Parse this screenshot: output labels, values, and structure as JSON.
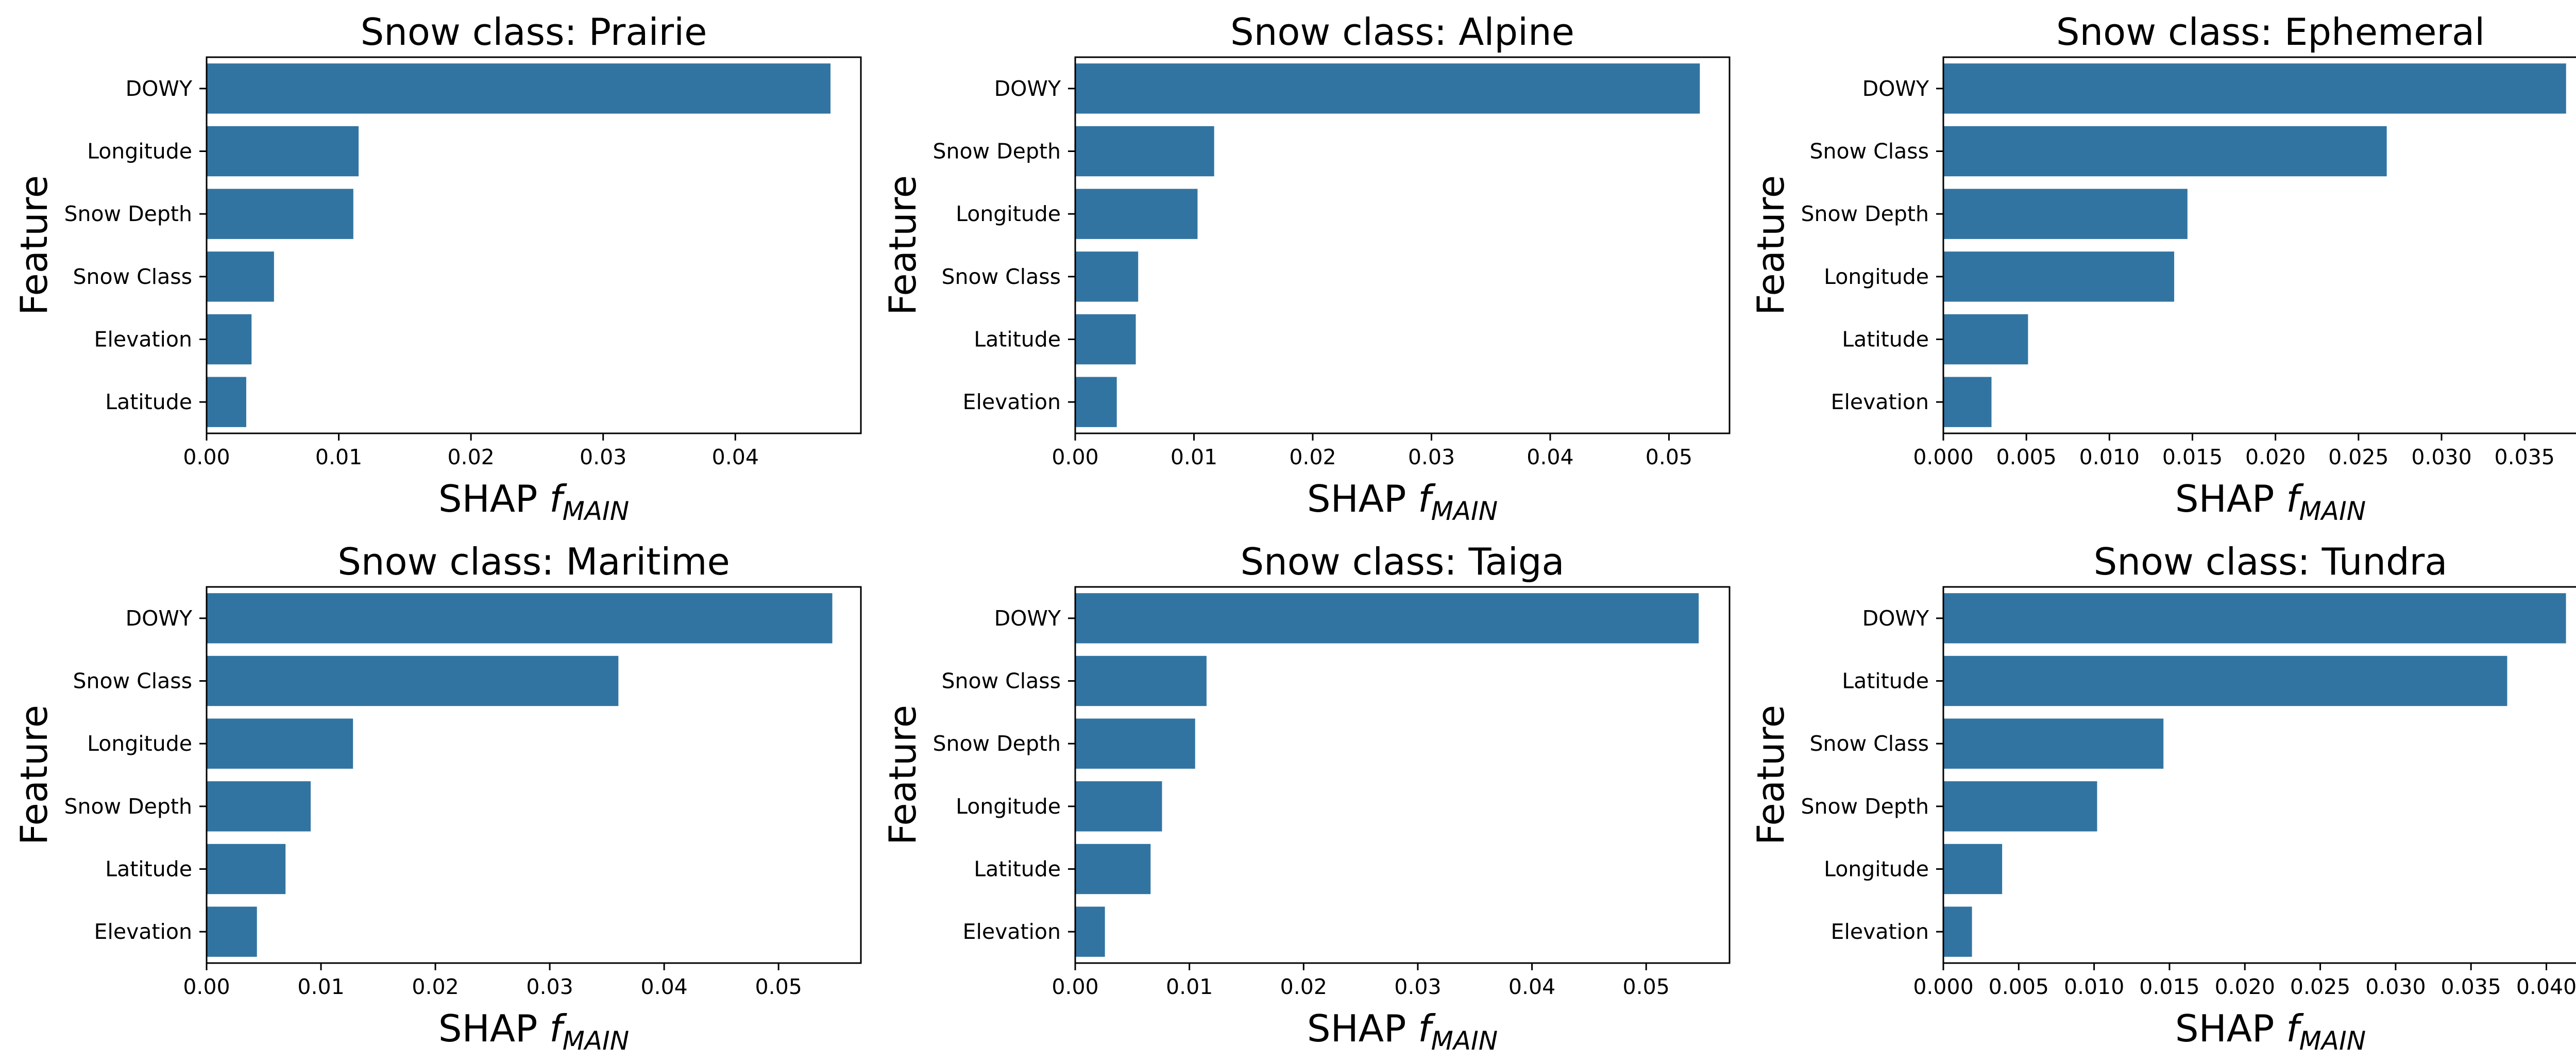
{
  "xlabel_main": "SHAP ",
  "xlabel_f": "f",
  "xlabel_sub": "MAIN",
  "ylabel": "Feature",
  "bar_color": "#3274a1",
  "chart_data": [
    {
      "type": "bar",
      "orientation": "horizontal",
      "title": "Snow class: Prairie",
      "categories": [
        "DOWY",
        "Longitude",
        "Snow Depth",
        "Snow Class",
        "Elevation",
        "Latitude"
      ],
      "values": [
        0.0472,
        0.0115,
        0.0111,
        0.0051,
        0.0034,
        0.003
      ],
      "xlim": [
        0,
        0.0495
      ],
      "xticks": [
        0.0,
        0.01,
        0.02,
        0.03,
        0.04
      ],
      "xtick_labels": [
        "0.00",
        "0.01",
        "0.02",
        "0.03",
        "0.04"
      ],
      "xlabel": "SHAP f_MAIN",
      "ylabel": "Feature"
    },
    {
      "type": "bar",
      "orientation": "horizontal",
      "title": "Snow class: Alpine",
      "categories": [
        "DOWY",
        "Snow Depth",
        "Longitude",
        "Snow Class",
        "Latitude",
        "Elevation"
      ],
      "values": [
        0.0526,
        0.0117,
        0.0103,
        0.0053,
        0.0051,
        0.0035
      ],
      "xlim": [
        0,
        0.0551
      ],
      "xticks": [
        0.0,
        0.01,
        0.02,
        0.03,
        0.04,
        0.05
      ],
      "xtick_labels": [
        "0.00",
        "0.01",
        "0.02",
        "0.03",
        "0.04",
        "0.05"
      ],
      "xlabel": "SHAP f_MAIN",
      "ylabel": "Feature"
    },
    {
      "type": "bar",
      "orientation": "horizontal",
      "title": "Snow class: Ephemeral",
      "categories": [
        "DOWY",
        "Snow Class",
        "Snow Depth",
        "Longitude",
        "Latitude",
        "Elevation"
      ],
      "values": [
        0.0375,
        0.0267,
        0.0147,
        0.0139,
        0.0051,
        0.0029
      ],
      "xlim": [
        0,
        0.0394
      ],
      "xticks": [
        0.0,
        0.005,
        0.01,
        0.015,
        0.02,
        0.025,
        0.03,
        0.035
      ],
      "xtick_labels": [
        "0.000",
        "0.005",
        "0.010",
        "0.015",
        "0.020",
        "0.025",
        "0.030",
        "0.035"
      ],
      "xlabel": "SHAP f_MAIN",
      "ylabel": "Feature"
    },
    {
      "type": "bar",
      "orientation": "horizontal",
      "title": "Snow class: Maritime",
      "categories": [
        "DOWY",
        "Snow Class",
        "Longitude",
        "Snow Depth",
        "Latitude",
        "Elevation"
      ],
      "values": [
        0.0547,
        0.036,
        0.0128,
        0.0091,
        0.0069,
        0.0044
      ],
      "xlim": [
        0,
        0.0572
      ],
      "xticks": [
        0.0,
        0.01,
        0.02,
        0.03,
        0.04,
        0.05
      ],
      "xtick_labels": [
        "0.00",
        "0.01",
        "0.02",
        "0.03",
        "0.04",
        "0.05"
      ],
      "xlabel": "SHAP f_MAIN",
      "ylabel": "Feature"
    },
    {
      "type": "bar",
      "orientation": "horizontal",
      "title": "Snow class: Taiga",
      "categories": [
        "DOWY",
        "Snow Class",
        "Snow Depth",
        "Longitude",
        "Latitude",
        "Elevation"
      ],
      "values": [
        0.0546,
        0.0115,
        0.0105,
        0.0076,
        0.0066,
        0.0026
      ],
      "xlim": [
        0,
        0.0573
      ],
      "xticks": [
        0.0,
        0.01,
        0.02,
        0.03,
        0.04,
        0.05
      ],
      "xtick_labels": [
        "0.00",
        "0.01",
        "0.02",
        "0.03",
        "0.04",
        "0.05"
      ],
      "xlabel": "SHAP f_MAIN",
      "ylabel": "Feature"
    },
    {
      "type": "bar",
      "orientation": "horizontal",
      "title": "Snow class: Tundra",
      "categories": [
        "DOWY",
        "Latitude",
        "Snow Class",
        "Snow Depth",
        "Longitude",
        "Elevation"
      ],
      "values": [
        0.0413,
        0.0374,
        0.0146,
        0.0102,
        0.0039,
        0.0019
      ],
      "xlim": [
        0,
        0.0434
      ],
      "xticks": [
        0.0,
        0.005,
        0.01,
        0.015,
        0.02,
        0.025,
        0.03,
        0.035,
        0.04
      ],
      "xtick_labels": [
        "0.000",
        "0.005",
        "0.010",
        "0.015",
        "0.020",
        "0.025",
        "0.030",
        "0.035",
        "0.040"
      ],
      "xlabel": "SHAP f_MAIN",
      "ylabel": "Feature"
    }
  ]
}
